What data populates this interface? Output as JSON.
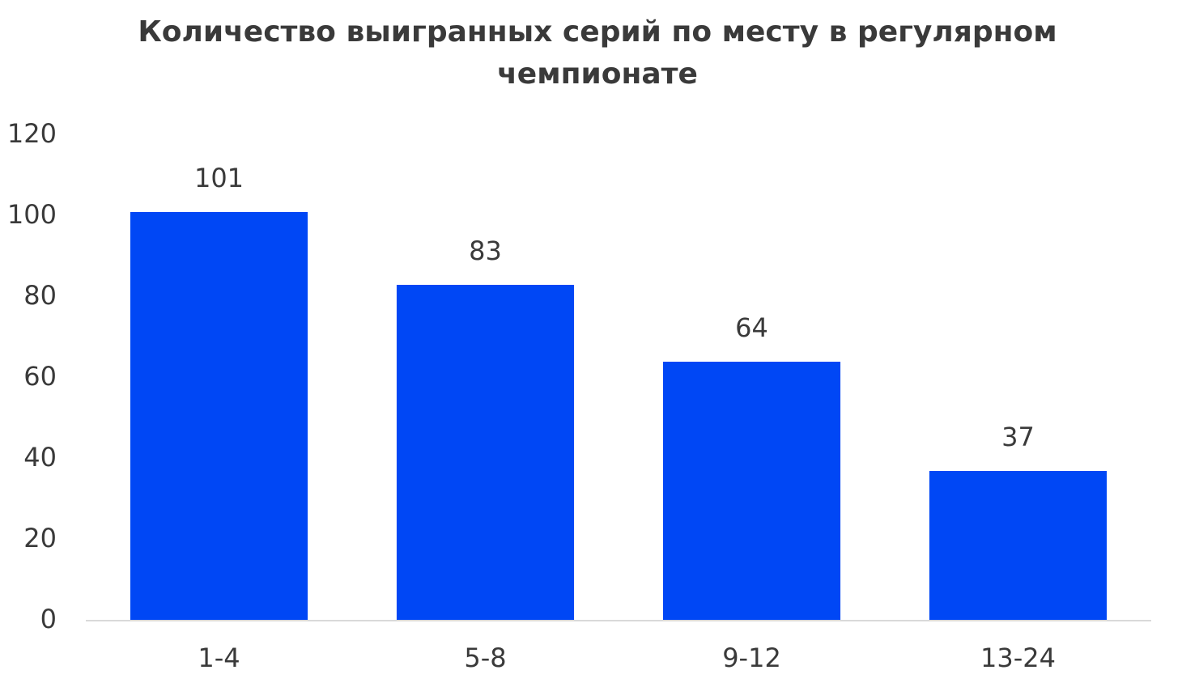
{
  "chart_data": {
    "type": "bar",
    "title": "Количество выигранных серий по месту в регулярном чемпионате",
    "categories": [
      "1-4",
      "5-8",
      "9-12",
      "13-24"
    ],
    "values": [
      101,
      83,
      64,
      37
    ],
    "color": "#0047f5",
    "ylim": [
      0,
      120
    ],
    "yticks": [
      0,
      20,
      40,
      60,
      80,
      100,
      120
    ],
    "grid": false
  }
}
